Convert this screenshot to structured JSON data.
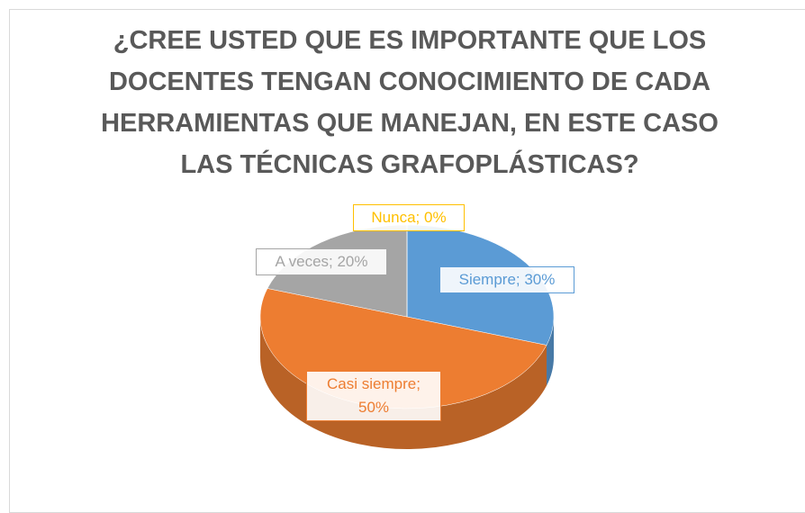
{
  "chart_data": {
    "type": "pie",
    "title": "¿CREE USTED QUE ES IMPORTANTE QUE LOS DOCENTES TENGAN CONOCIMIENTO DE CADA HERRAMIENTAS QUE MANEJAN, EN ESTE CASO LAS TÉCNICAS GRAFOPLÁSTICAS?",
    "categories": [
      "Siempre",
      "Casi siempre",
      "A veces",
      "Nunca"
    ],
    "values": [
      30,
      50,
      20,
      0
    ],
    "value_labels": [
      "Siempre; 30%",
      "Casi siempre; 50%",
      "A veces; 20%",
      "Nunca; 0%"
    ],
    "colors": [
      "#5b9bd5",
      "#ed7d31",
      "#a5a5a5",
      "#ffc000"
    ]
  }
}
